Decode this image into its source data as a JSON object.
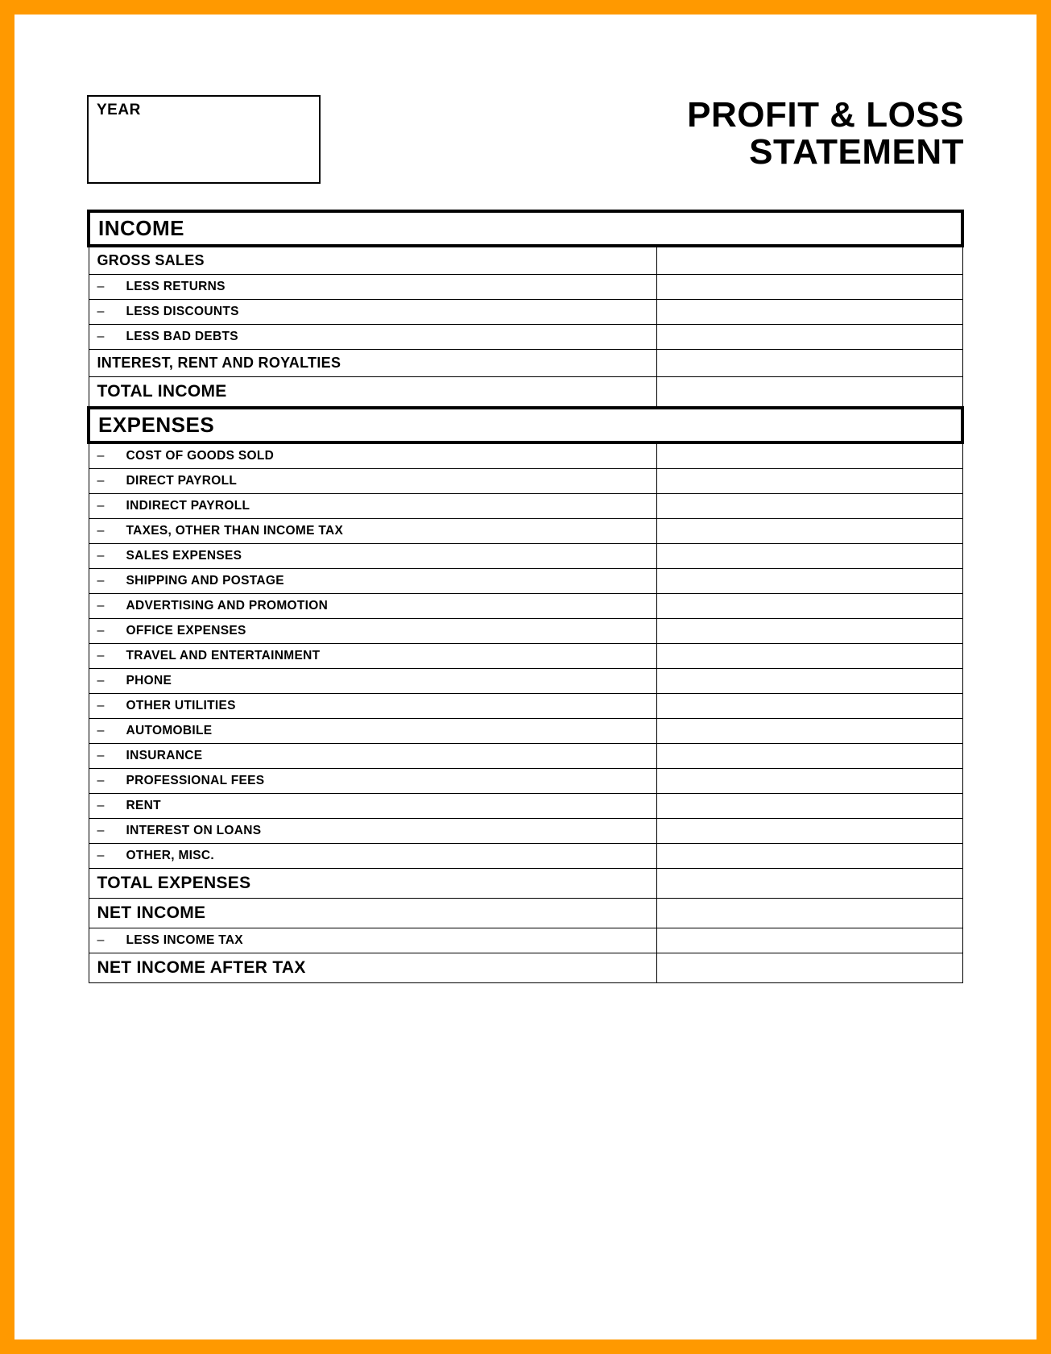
{
  "frame_border_color": "#ff9900",
  "background_color": "#ffffff",
  "year_label": "YEAR",
  "title_line1": "PROFIT & LOSS",
  "title_line2": "STATEMENT",
  "sections": {
    "income": {
      "header": "INCOME",
      "gross_sales": "GROSS SALES",
      "less_returns": "LESS RETURNS",
      "less_discounts": "LESS DISCOUNTS",
      "less_bad_debts": "LESS BAD DEBTS",
      "interest_rent_royalties": "INTEREST, RENT AND ROYALTIES",
      "total_income": "TOTAL INCOME"
    },
    "expenses": {
      "header": "EXPENSES",
      "cost_of_goods_sold": "COST OF GOODS SOLD",
      "direct_payroll": "DIRECT PAYROLL",
      "indirect_payroll": "INDIRECT PAYROLL",
      "taxes_other": "TAXES, OTHER THAN INCOME TAX",
      "sales_expenses": "SALES EXPENSES",
      "shipping_postage": "SHIPPING AND POSTAGE",
      "advertising_promotion": "ADVERTISING AND PROMOTION",
      "office_expenses": "OFFICE EXPENSES",
      "travel_entertainment": "TRAVEL AND ENTERTAINMENT",
      "phone": "PHONE",
      "other_utilities": "OTHER UTILITIES",
      "automobile": "AUTOMOBILE",
      "insurance": "INSURANCE",
      "professional_fees": "PROFESSIONAL FEES",
      "rent": "RENT",
      "interest_on_loans": "INTEREST ON LOANS",
      "other_misc": "OTHER, MISC.",
      "total_expenses": "TOTAL EXPENSES"
    },
    "net": {
      "net_income": "NET INCOME",
      "less_income_tax": "LESS INCOME TAX",
      "net_income_after_tax": "NET INCOME AFTER TAX"
    }
  },
  "styling": {
    "section_header_border_width": 4,
    "row_border_width": 1.5,
    "title_fontsize": 44,
    "section_header_fontsize": 26,
    "summary_fontsize": 21,
    "bold_row_fontsize": 18,
    "item_fontsize": 15.5,
    "label_col_width_pct": 65,
    "value_col_width_pct": 35,
    "border_color": "#000000",
    "text_color": "#000000"
  }
}
